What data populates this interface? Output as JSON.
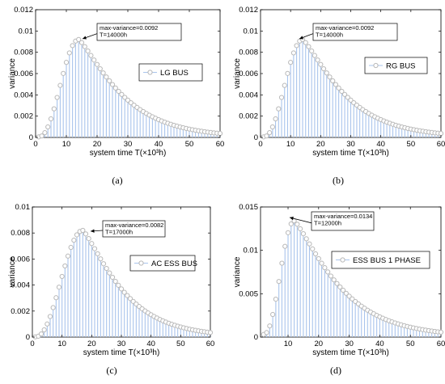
{
  "chart_data": [
    {
      "type": "stem",
      "caption": "(a)",
      "xlabel": "system time T(×10³h)",
      "ylabel": "variance",
      "xlim": [
        0,
        60
      ],
      "ylim": [
        0,
        0.012
      ],
      "xticks": [
        "0",
        "10",
        "20",
        "30",
        "40",
        "50",
        "60"
      ],
      "yticks": [
        "0",
        "0.002",
        "0.004",
        "0.006",
        "0.008",
        "0.01",
        "0.012"
      ],
      "legend": "LG BUS",
      "legend_position": "upper-right",
      "annotation": {
        "lines": [
          "max-variance=0.0092",
          "T=14000h"
        ],
        "x": 14,
        "y": 0.0092
      },
      "peak": {
        "x": 14,
        "y": 0.0092
      },
      "x_start": 1,
      "y_start": 5e-05,
      "x_end": 60,
      "y_end": 0.0002,
      "series_color": "#a9c4ec",
      "marker_color": "#b9b9b9"
    },
    {
      "type": "stem",
      "caption": "(b)",
      "xlabel": "system time T(×10³h)",
      "ylabel": "variance",
      "xlim": [
        0,
        60
      ],
      "ylim": [
        0,
        0.012
      ],
      "xticks": [
        "0",
        "10",
        "20",
        "30",
        "40",
        "50",
        "60"
      ],
      "yticks": [
        "0",
        "0.002",
        "0.004",
        "0.006",
        "0.008",
        "0.01",
        "0.012"
      ],
      "legend": "RG BUS",
      "legend_position": "upper-right",
      "annotation": {
        "lines": [
          "max-variance=0.0092",
          "T=14000h"
        ],
        "x": 14,
        "y": 0.0092
      },
      "peak": {
        "x": 14,
        "y": 0.0092
      },
      "x_start": 1,
      "y_start": 5e-05,
      "x_end": 60,
      "y_end": 0.0002,
      "series_color": "#a9c4ec",
      "marker_color": "#b9b9b9"
    },
    {
      "type": "stem",
      "caption": "(c)",
      "xlabel": "system time T(×10³h)",
      "ylabel": "variance",
      "xlim": [
        0,
        60
      ],
      "ylim": [
        0,
        0.01
      ],
      "xticks": [
        "0",
        "10",
        "20",
        "30",
        "40",
        "50",
        "60"
      ],
      "yticks": [
        "0",
        "0.002",
        "0.004",
        "0.006",
        "0.008",
        "0.01"
      ],
      "legend": "AC ESS BUS",
      "legend_position": "upper-right",
      "annotation": {
        "lines": [
          "max-variance=0.0082",
          "T=17000h"
        ],
        "x": 17,
        "y": 0.0082
      },
      "peak": {
        "x": 17,
        "y": 0.0082
      },
      "x_start": 1,
      "y_start": 2e-05,
      "x_end": 60,
      "y_end": 0.0002,
      "series_color": "#a9c4ec",
      "marker_color": "#b9b9b9"
    },
    {
      "type": "stem",
      "caption": "(d)",
      "xlabel": "system time T(×10³h)",
      "ylabel": "variance",
      "xlim": [
        1,
        60
      ],
      "ylim": [
        0,
        0.015
      ],
      "xticks": [
        "10",
        "20",
        "30",
        "40",
        "50",
        "60"
      ],
      "yticks": [
        "0",
        "0.005",
        "0.01",
        "0.015"
      ],
      "legend": "ESS BUS 1 PHASE",
      "legend_position": "upper-right",
      "annotation": {
        "lines": [
          "max-variance=0.0134",
          "T=12000h"
        ],
        "x": 12,
        "y": 0.0134
      },
      "peak": {
        "x": 12,
        "y": 0.0134
      },
      "x_start": 2,
      "y_start": 0.0003,
      "x_end": 60,
      "y_end": 0.0003,
      "series_color": "#a9c4ec",
      "marker_color": "#b9b9b9"
    }
  ]
}
